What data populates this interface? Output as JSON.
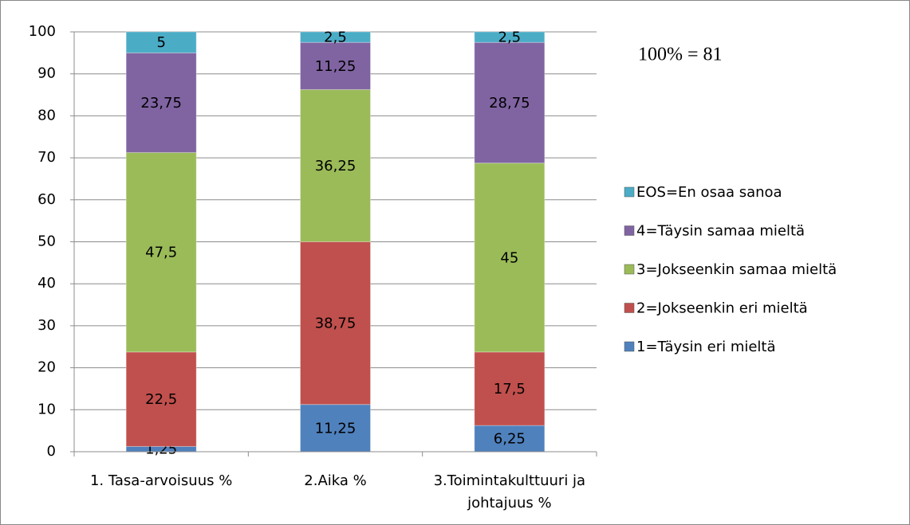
{
  "chart_data": {
    "type": "stacked-bar",
    "annotation": "100% = 81",
    "categories": [
      "1. Tasa-arvoisuus %",
      "2.Aika %",
      "3.Toimintakulttuuri ja johtajuus %"
    ],
    "series": [
      {
        "name": "1=Täysin eri mieltä",
        "color": "#4f81bd",
        "values": [
          1.25,
          11.25,
          6.25
        ],
        "value_labels": [
          "1,25",
          "11,25",
          "6,25"
        ]
      },
      {
        "name": "2=Jokseenkin eri mieltä",
        "color": "#c0504d",
        "values": [
          22.5,
          38.75,
          17.5
        ],
        "value_labels": [
          "22,5",
          "38,75",
          "17,5"
        ]
      },
      {
        "name": "3=Jokseenkin samaa mieltä",
        "color": "#9bbb59",
        "values": [
          47.5,
          36.25,
          45
        ],
        "value_labels": [
          "47,5",
          "36,25",
          "45"
        ]
      },
      {
        "name": "4=Täysin samaa mieltä",
        "color": "#8064a2",
        "values": [
          23.75,
          11.25,
          28.75
        ],
        "value_labels": [
          "23,75",
          "11,25",
          "28,75"
        ]
      },
      {
        "name": "EOS=En osaa sanoa",
        "color": "#4bacc6",
        "values": [
          5,
          2.5,
          2.5
        ],
        "value_labels": [
          "5",
          "2,5",
          "2,5"
        ]
      }
    ],
    "ylim": [
      0,
      100
    ],
    "yticks": [
      0,
      10,
      20,
      30,
      40,
      50,
      60,
      70,
      80,
      90,
      100
    ],
    "grid": true,
    "legend": "right"
  }
}
